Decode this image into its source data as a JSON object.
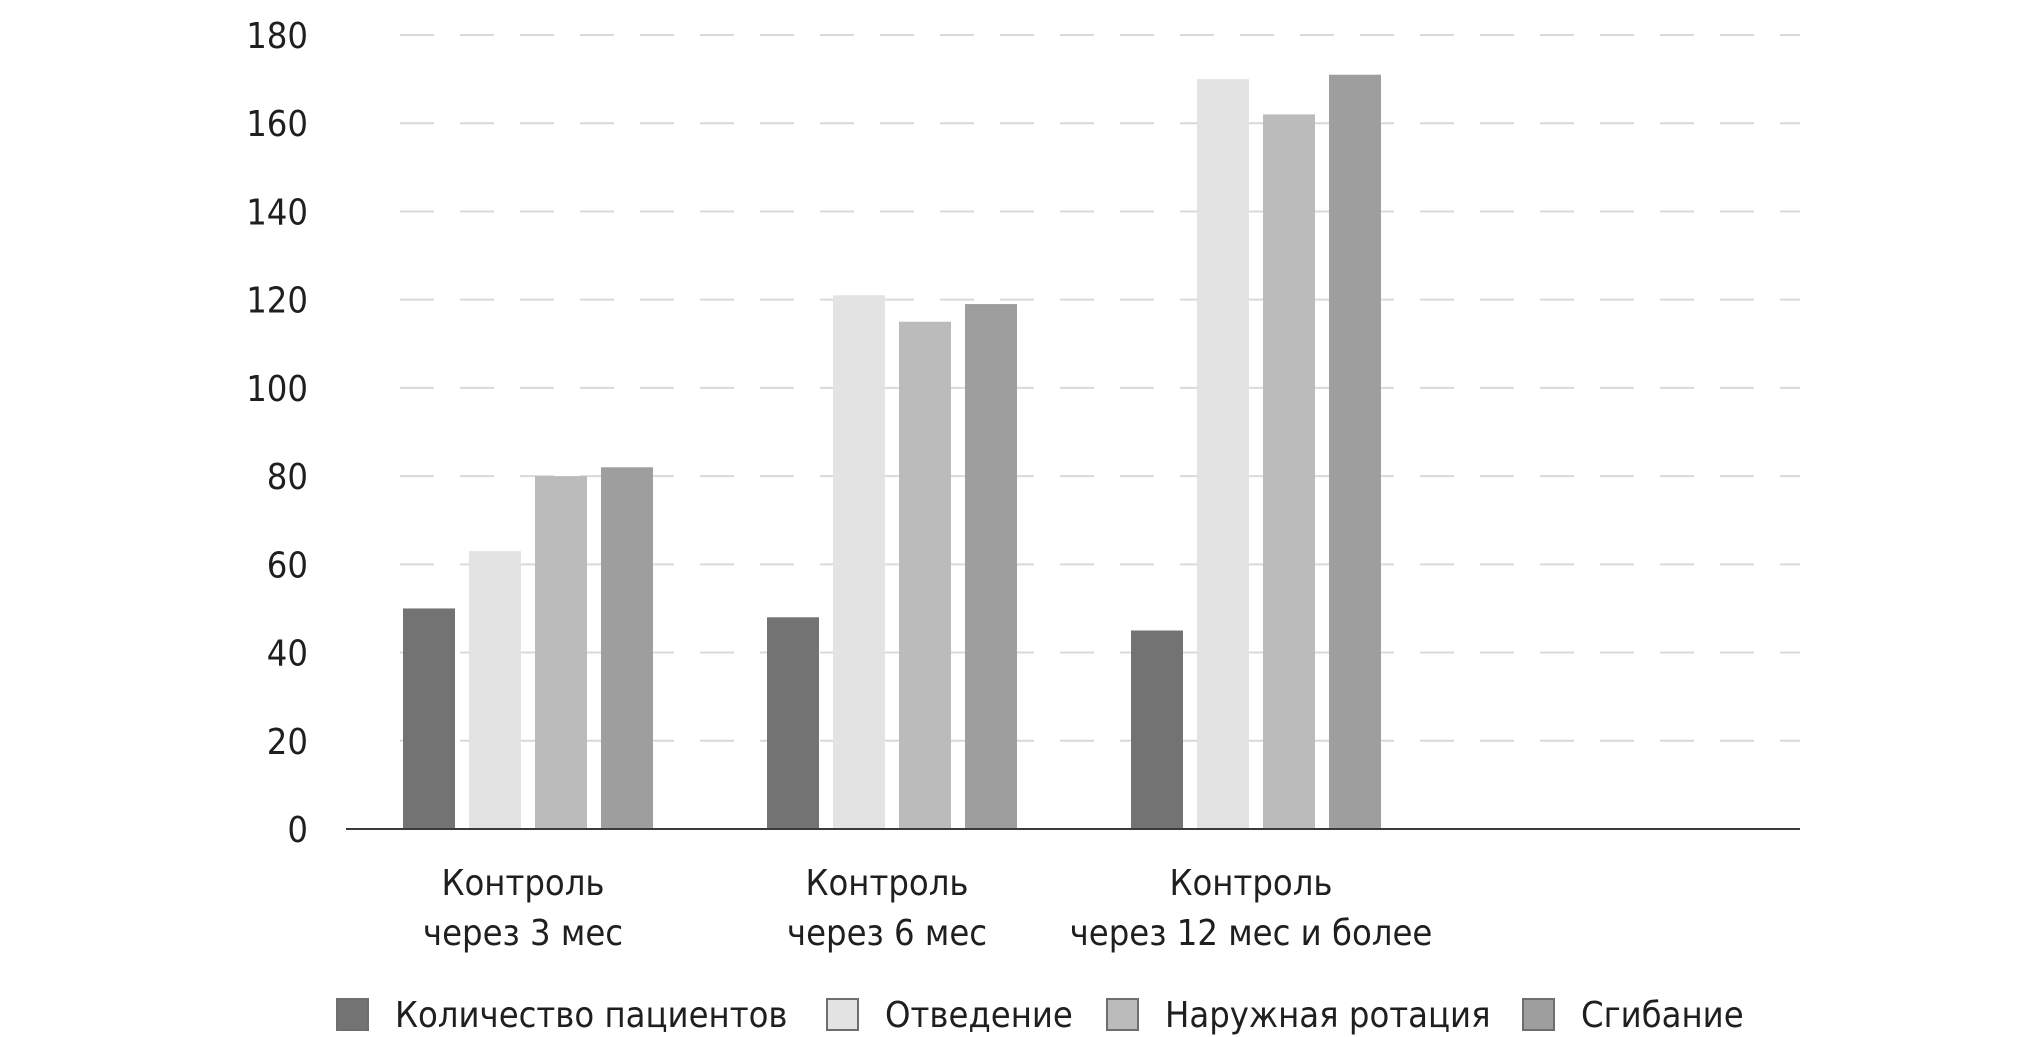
{
  "chart_data": {
    "type": "bar",
    "title": "",
    "xlabel": "",
    "ylabel": "",
    "ylim": [
      0,
      180
    ],
    "yticks": [
      0,
      20,
      40,
      60,
      80,
      100,
      120,
      140,
      160,
      180
    ],
    "grid": true,
    "legend_position": "bottom",
    "categories": [
      [
        "Контроль",
        "через 3 мес"
      ],
      [
        "Контроль",
        "через 6 мес"
      ],
      [
        "Контроль",
        "через 12 мес и более"
      ],
      [
        "",
        ""
      ]
    ],
    "series": [
      {
        "name": "Количество пациентов",
        "color": "#737373",
        "values": [
          50,
          48,
          45,
          null
        ]
      },
      {
        "name": "Отведение",
        "color": "#e3e3e3",
        "values": [
          63,
          121,
          170,
          null
        ]
      },
      {
        "name": "Наружная ротация",
        "color": "#bbbbbb",
        "values": [
          80,
          115,
          162,
          null
        ]
      },
      {
        "name": "Сгибание",
        "color": "#9e9e9e",
        "values": [
          82,
          119,
          171,
          null
        ]
      }
    ],
    "colors": {
      "gridline": "#d9d9d9",
      "axis": "#3a3a3a",
      "text": "#1f1f1f"
    }
  }
}
